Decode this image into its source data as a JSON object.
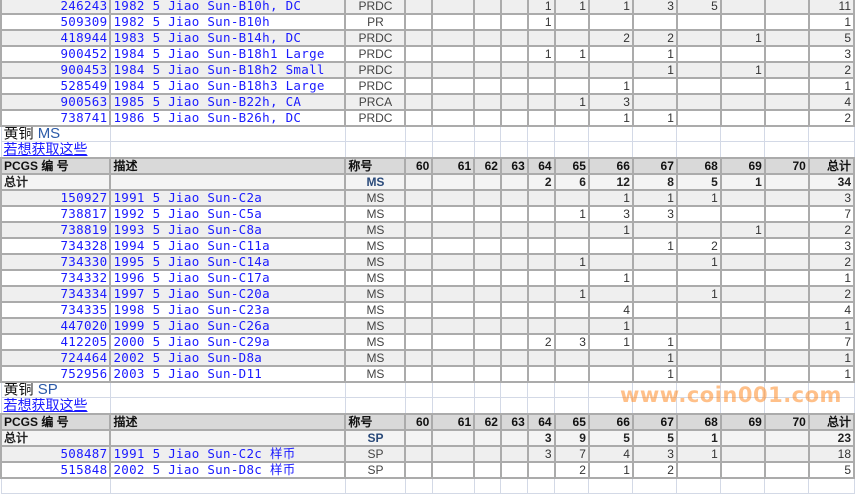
{
  "columns": {
    "pcgs": "PCGS 编 号",
    "description": "描述",
    "designation": "称号",
    "grades": [
      "60",
      "61",
      "62",
      "63",
      "64",
      "65",
      "66",
      "67",
      "68",
      "69",
      "70"
    ],
    "total": "总计"
  },
  "total_label": "总计",
  "sections": [
    {
      "rows": [
        {
          "pcgs": "246243",
          "description": "1982 5 Jiao Sun-B10h, DC",
          "designation": "PRDC",
          "grades": [
            "",
            "",
            "",
            "",
            "1",
            "1",
            "1",
            "3",
            "5",
            "",
            ""
          ],
          "total": "11"
        },
        {
          "pcgs": "509309",
          "description": "1982 5 Jiao Sun-B10h",
          "designation": "PR",
          "grades": [
            "",
            "",
            "",
            "",
            "1",
            "",
            "",
            "",
            "",
            "",
            ""
          ],
          "total": "1"
        },
        {
          "pcgs": "418944",
          "description": "1983 5 Jiao Sun-B14h, DC",
          "designation": "PRDC",
          "grades": [
            "",
            "",
            "",
            "",
            "",
            "",
            "2",
            "2",
            "",
            "1",
            ""
          ],
          "total": "5"
        },
        {
          "pcgs": "900452",
          "description": "1984 5 Jiao Sun-B18h1 Large",
          "designation": "PRDC",
          "grades": [
            "",
            "",
            "",
            "",
            "1",
            "1",
            "",
            "1",
            "",
            "",
            ""
          ],
          "total": "3"
        },
        {
          "pcgs": "900453",
          "description": "1984 5 Jiao Sun-B18h2 Small",
          "designation": "PRDC",
          "grades": [
            "",
            "",
            "",
            "",
            "",
            "",
            "",
            "1",
            "",
            "1",
            ""
          ],
          "total": "2"
        },
        {
          "pcgs": "528549",
          "description": "1984 5 Jiao Sun-B18h3 Large",
          "designation": "PRDC",
          "grades": [
            "",
            "",
            "",
            "",
            "",
            "",
            "1",
            "",
            "",
            "",
            ""
          ],
          "total": "1"
        },
        {
          "pcgs": "900563",
          "description": "1985 5 Jiao Sun-B22h, CA",
          "designation": "PRCA",
          "grades": [
            "",
            "",
            "",
            "",
            "",
            "1",
            "3",
            "",
            "",
            "",
            ""
          ],
          "total": "4"
        },
        {
          "pcgs": "738741",
          "description": "1986 5 Jiao Sun-B26h, DC",
          "designation": "PRDC",
          "grades": [
            "",
            "",
            "",
            "",
            "",
            "",
            "1",
            "1",
            "",
            "",
            ""
          ],
          "total": "2"
        }
      ]
    },
    {
      "title_metal": "黄铜",
      "title_grade": "MS",
      "link": "若想获取这些",
      "total": {
        "designation": "MS",
        "grades": [
          "",
          "",
          "",
          "",
          "2",
          "6",
          "12",
          "8",
          "5",
          "1",
          ""
        ],
        "total": "34"
      },
      "rows": [
        {
          "pcgs": "150927",
          "description": "1991 5 Jiao Sun-C2a",
          "designation": "MS",
          "grades": [
            "",
            "",
            "",
            "",
            "",
            "",
            "1",
            "1",
            "1",
            "",
            ""
          ],
          "total": "3"
        },
        {
          "pcgs": "738817",
          "description": "1992 5 Jiao Sun-C5a",
          "designation": "MS",
          "grades": [
            "",
            "",
            "",
            "",
            "",
            "1",
            "3",
            "3",
            "",
            "",
            ""
          ],
          "total": "7"
        },
        {
          "pcgs": "738819",
          "description": "1993 5 Jiao Sun-C8a",
          "designation": "MS",
          "grades": [
            "",
            "",
            "",
            "",
            "",
            "",
            "1",
            "",
            "",
            "1",
            ""
          ],
          "total": "2"
        },
        {
          "pcgs": "734328",
          "description": "1994 5 Jiao Sun-C11a",
          "designation": "MS",
          "grades": [
            "",
            "",
            "",
            "",
            "",
            "",
            "",
            "1",
            "2",
            "",
            ""
          ],
          "total": "3"
        },
        {
          "pcgs": "734330",
          "description": "1995 5 Jiao Sun-C14a",
          "designation": "MS",
          "grades": [
            "",
            "",
            "",
            "",
            "",
            "1",
            "",
            "",
            "1",
            "",
            ""
          ],
          "total": "2"
        },
        {
          "pcgs": "734332",
          "description": "1996 5 Jiao Sun-C17a",
          "designation": "MS",
          "grades": [
            "",
            "",
            "",
            "",
            "",
            "",
            "1",
            "",
            "",
            "",
            ""
          ],
          "total": "1"
        },
        {
          "pcgs": "734334",
          "description": "1997 5 Jiao Sun-C20a",
          "designation": "MS",
          "grades": [
            "",
            "",
            "",
            "",
            "",
            "1",
            "",
            "",
            "1",
            "",
            ""
          ],
          "total": "2"
        },
        {
          "pcgs": "734335",
          "description": "1998 5 Jiao Sun-C23a",
          "designation": "MS",
          "grades": [
            "",
            "",
            "",
            "",
            "",
            "",
            "4",
            "",
            "",
            "",
            ""
          ],
          "total": "4"
        },
        {
          "pcgs": "447020",
          "description": "1999 5 Jiao Sun-C26a",
          "designation": "MS",
          "grades": [
            "",
            "",
            "",
            "",
            "",
            "",
            "1",
            "",
            "",
            "",
            ""
          ],
          "total": "1"
        },
        {
          "pcgs": "412205",
          "description": "2000 5 Jiao Sun-C29a",
          "designation": "MS",
          "grades": [
            "",
            "",
            "",
            "",
            "2",
            "3",
            "1",
            "1",
            "",
            "",
            ""
          ],
          "total": "7"
        },
        {
          "pcgs": "724464",
          "description": "2002 5 Jiao Sun-D8a",
          "designation": "MS",
          "grades": [
            "",
            "",
            "",
            "",
            "",
            "",
            "",
            "1",
            "",
            "",
            ""
          ],
          "total": "1"
        },
        {
          "pcgs": "752956",
          "description": "2003 5 Jiao Sun-D11",
          "designation": "MS",
          "grades": [
            "",
            "",
            "",
            "",
            "",
            "",
            "",
            "1",
            "",
            "",
            ""
          ],
          "total": "1"
        }
      ]
    },
    {
      "title_metal": "黄铜",
      "title_grade": "SP",
      "link": "若想获取这些",
      "total": {
        "designation": "SP",
        "grades": [
          "",
          "",
          "",
          "",
          "3",
          "9",
          "5",
          "5",
          "1",
          "",
          ""
        ],
        "total": "23"
      },
      "rows": [
        {
          "pcgs": "508487",
          "description": "1991 5 Jiao Sun-C2c 样币",
          "designation": "SP",
          "grades": [
            "",
            "",
            "",
            "",
            "3",
            "7",
            "4",
            "3",
            "1",
            "",
            ""
          ],
          "total": "18"
        },
        {
          "pcgs": "515848",
          "description": "2002 5 Jiao Sun-D8c 样币",
          "designation": "SP",
          "grades": [
            "",
            "",
            "",
            "",
            "",
            "2",
            "1",
            "2",
            "",
            "",
            ""
          ],
          "total": "5"
        }
      ]
    }
  ],
  "watermark": "www.coin001.com",
  "colors": {
    "link": "#1a1aff",
    "header_bg": "#d9d9d9",
    "alt_row_bg": "#efefef",
    "grid": "#ababab",
    "watermark": "#ff8c28"
  }
}
